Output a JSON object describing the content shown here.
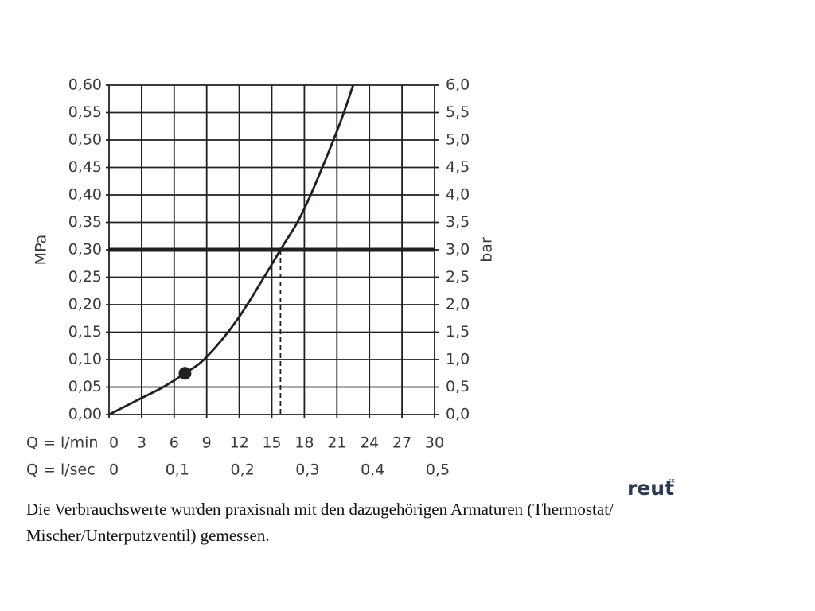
{
  "chart_data": {
    "type": "line",
    "y_label": "MPa",
    "y2_label": "bar",
    "x_label": "Q = l/min",
    "x2_label": "Q = l/sec",
    "xlim": [
      0,
      30
    ],
    "xticks": [
      0,
      3,
      6,
      9,
      12,
      15,
      18,
      21,
      24,
      27,
      30
    ],
    "x2lim": [
      0,
      0.5
    ],
    "x2ticks": [
      0,
      {
        "value": 0.1,
        "label": "0,1"
      },
      {
        "value": 0.2,
        "label": "0,2"
      },
      {
        "value": 0.3,
        "label": "0,3"
      },
      {
        "value": 0.4,
        "label": "0,4"
      },
      {
        "value": 0.5,
        "label": "0,5"
      }
    ],
    "ylim": [
      0,
      0.6
    ],
    "yticks": [
      {
        "value": 0,
        "label": "0,00"
      },
      {
        "value": 0.05,
        "label": "0,05"
      },
      {
        "value": 0.1,
        "label": "0,10"
      },
      {
        "value": 0.15,
        "label": "0,15"
      },
      {
        "value": 0.2,
        "label": "0,20"
      },
      {
        "value": 0.25,
        "label": "0,25"
      },
      {
        "value": 0.3,
        "label": "0,30"
      },
      {
        "value": 0.35,
        "label": "0,35"
      },
      {
        "value": 0.4,
        "label": "0,40"
      },
      {
        "value": 0.45,
        "label": "0,45"
      },
      {
        "value": 0.5,
        "label": "0,50"
      },
      {
        "value": 0.55,
        "label": "0,55"
      },
      {
        "value": 0.6,
        "label": "0,60"
      }
    ],
    "y2lim": [
      0,
      6
    ],
    "y2ticks": [
      {
        "value": 0,
        "label": "0,0"
      },
      {
        "value": 0.5,
        "label": "0,5"
      },
      {
        "value": 1,
        "label": "1,0"
      },
      {
        "value": 1.5,
        "label": "1,5"
      },
      {
        "value": 2,
        "label": "2,0"
      },
      {
        "value": 2.5,
        "label": "2,5"
      },
      {
        "value": 3,
        "label": "3,0"
      },
      {
        "value": 3.5,
        "label": "3,5"
      },
      {
        "value": 4,
        "label": "4,0"
      },
      {
        "value": 4.5,
        "label": "4,5"
      },
      {
        "value": 5,
        "label": "5,0"
      },
      {
        "value": 5.5,
        "label": "5,5"
      },
      {
        "value": 6,
        "label": "6,0"
      }
    ],
    "grid": true,
    "color": "#231f20",
    "series": [
      {
        "x": [
          0,
          3,
          5,
          7,
          9,
          12,
          15.8,
          18,
          21,
          22.5
        ],
        "values": [
          0,
          0.03,
          0.05,
          0.075,
          0.105,
          0.178,
          0.3,
          0.375,
          0.516,
          0.6
        ]
      }
    ],
    "reference_line": {
      "y": 0.3
    },
    "operating_point": {
      "x": 15.8,
      "y": 0.3
    },
    "marker": {
      "x": 7,
      "y": 0.075
    }
  },
  "logo": "reut",
  "logo_mark": "SK",
  "caption": "Die Verbrauchswerte wurden praxisnah mit den dazugehörigen Armaturen (Thermostat/ Mischer/Unterputzventil) gemessen."
}
